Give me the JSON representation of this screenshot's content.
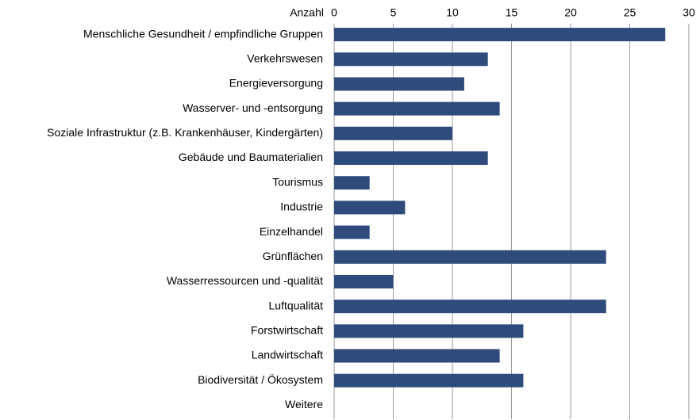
{
  "chart_data": {
    "type": "bar",
    "orientation": "horizontal",
    "xlabel": "Anzahl",
    "categories": [
      "Menschliche Gesundheit / empfindliche Gruppen",
      "Verkehrswesen",
      "Energieversorgung",
      "Wasserver- und -entsorgung",
      "Soziale Infrastruktur (z.B. Krankenhäuser, Kindergärten)",
      "Gebäude und Baumaterialien",
      "Tourismus",
      "Industrie",
      "Einzelhandel",
      "Grünflächen",
      "Wasserressourcen und -qualität",
      "Luftqualität",
      "Forstwirtschaft",
      "Landwirtschaft",
      "Biodiversität / Ökosystem",
      "Weitere"
    ],
    "values": [
      28,
      13,
      11,
      14,
      10,
      13,
      3,
      6,
      3,
      23,
      5,
      23,
      16,
      14,
      16,
      0
    ],
    "color": "#2f4b7c",
    "xlim": [
      0,
      30
    ],
    "xticks": [
      0,
      5,
      10,
      15,
      20,
      25,
      30
    ],
    "grid": true
  }
}
